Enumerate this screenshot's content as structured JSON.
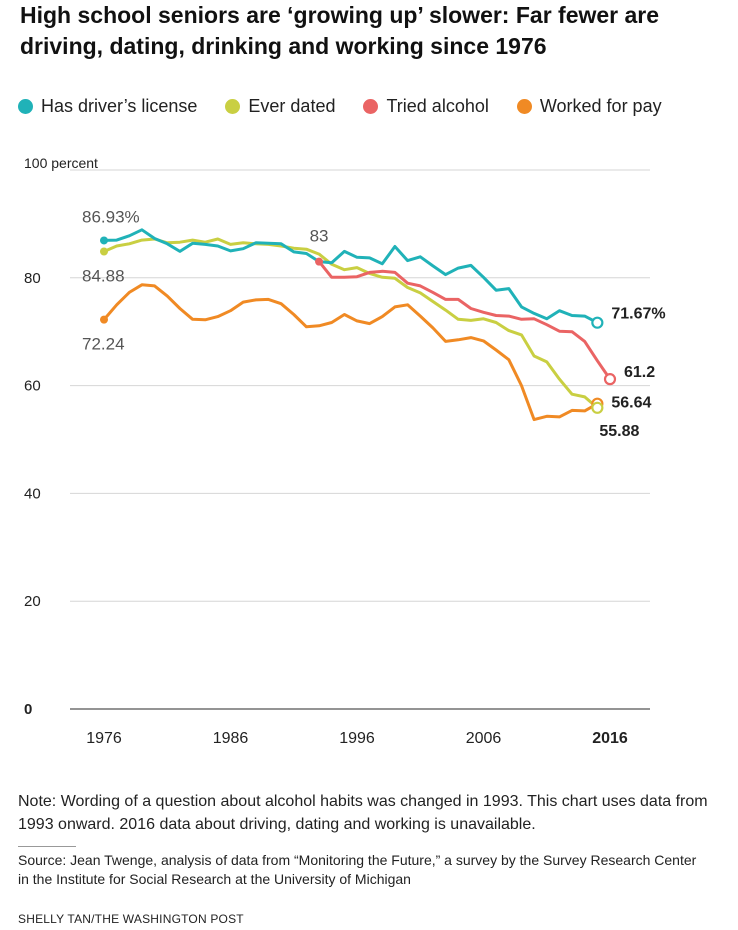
{
  "header": {
    "title": "High school seniors are ‘growing up’ slower: Far fewer are driving, dating, drinking and working since 1976"
  },
  "chart_data": {
    "type": "line",
    "title": "High school seniors are ‘growing up’ slower: Far fewer are driving, dating, drinking and working since 1976",
    "xlabel": "",
    "ylabel": "",
    "xlim": [
      1976,
      2016
    ],
    "ylim": [
      0,
      100
    ],
    "x_ticks": [
      1976,
      1986,
      1996,
      2006,
      2016
    ],
    "y_ticks": [
      0,
      20,
      40,
      60,
      80,
      100
    ],
    "y_tick_labels": [
      "0",
      "20",
      "40",
      "60",
      "80",
      "100 percent"
    ],
    "grid": true,
    "legend_position": "top",
    "series": [
      {
        "name": "Has driver’s license",
        "color": "#20b2b8",
        "x": [
          1976,
          1977,
          1978,
          1979,
          1980,
          1981,
          1982,
          1983,
          1984,
          1985,
          1986,
          1987,
          1988,
          1989,
          1990,
          1991,
          1992,
          1993,
          1994,
          1995,
          1996,
          1997,
          1998,
          1999,
          2000,
          2001,
          2002,
          2003,
          2004,
          2005,
          2006,
          2007,
          2008,
          2009,
          2010,
          2011,
          2012,
          2013,
          2014,
          2015
        ],
        "values": [
          86.93,
          87.0,
          87.8,
          88.9,
          87.3,
          86.3,
          84.9,
          86.4,
          86.2,
          85.9,
          85.0,
          85.4,
          86.5,
          86.4,
          86.3,
          84.8,
          84.5,
          83.0,
          82.8,
          84.9,
          83.8,
          83.7,
          82.6,
          85.8,
          83.2,
          83.9,
          82.2,
          80.6,
          81.8,
          82.3,
          80.1,
          77.7,
          78.0,
          74.6,
          73.4,
          72.4,
          73.9,
          73.0,
          72.9,
          71.67
        ]
      },
      {
        "name": "Ever dated",
        "color": "#c9cf42",
        "x": [
          1976,
          1977,
          1978,
          1979,
          1980,
          1981,
          1982,
          1983,
          1984,
          1985,
          1986,
          1987,
          1988,
          1989,
          1990,
          1991,
          1992,
          1993,
          1994,
          1995,
          1996,
          1997,
          1998,
          1999,
          2000,
          2001,
          2002,
          2003,
          2004,
          2005,
          2006,
          2007,
          2008,
          2009,
          2010,
          2011,
          2012,
          2013,
          2014,
          2015
        ],
        "values": [
          84.88,
          85.9,
          86.3,
          87.0,
          87.2,
          86.5,
          86.6,
          87.0,
          86.6,
          87.2,
          86.2,
          86.5,
          86.3,
          86.2,
          85.9,
          85.5,
          85.3,
          84.4,
          82.5,
          81.5,
          81.9,
          80.8,
          80.1,
          79.9,
          78.2,
          77.2,
          75.6,
          74.0,
          72.3,
          72.1,
          72.4,
          71.7,
          70.2,
          69.4,
          65.5,
          64.4,
          61.2,
          58.4,
          57.9,
          55.88
        ]
      },
      {
        "name": "Tried alcohol",
        "color": "#ea6464",
        "x": [
          1993,
          1994,
          1995,
          1996,
          1997,
          1998,
          1999,
          2000,
          2001,
          2002,
          2003,
          2004,
          2005,
          2006,
          2007,
          2008,
          2009,
          2010,
          2011,
          2012,
          2013,
          2014,
          2015,
          2016
        ],
        "values": [
          83.0,
          80.1,
          80.1,
          80.2,
          81.0,
          81.2,
          81.0,
          79.0,
          78.5,
          77.3,
          76.0,
          76.0,
          74.3,
          73.6,
          73.0,
          72.9,
          72.3,
          72.4,
          71.3,
          70.1,
          70.0,
          68.2,
          64.6,
          61.2
        ]
      },
      {
        "name": "Worked for pay",
        "color": "#f08a24",
        "x": [
          1976,
          1977,
          1978,
          1979,
          1980,
          1981,
          1982,
          1983,
          1984,
          1985,
          1986,
          1987,
          1988,
          1989,
          1990,
          1991,
          1992,
          1993,
          1994,
          1995,
          1996,
          1997,
          1998,
          1999,
          2000,
          2001,
          2002,
          2003,
          2004,
          2005,
          2006,
          2007,
          2008,
          2009,
          2010,
          2011,
          2012,
          2013,
          2014,
          2015
        ],
        "values": [
          72.24,
          75.0,
          77.3,
          78.7,
          78.5,
          76.6,
          74.3,
          72.3,
          72.2,
          72.8,
          73.9,
          75.5,
          75.9,
          76.0,
          75.2,
          73.2,
          70.9,
          71.1,
          71.7,
          73.2,
          72.0,
          71.5,
          72.8,
          74.6,
          75.0,
          72.9,
          70.7,
          68.2,
          68.5,
          68.9,
          68.3,
          66.6,
          64.8,
          60.0,
          53.7,
          54.3,
          54.2,
          55.4,
          55.3,
          56.64
        ]
      }
    ],
    "annotations": [
      {
        "label": "86.93%",
        "series": "Has driver’s license",
        "x": 1976,
        "value": 86.93
      },
      {
        "label": "84.88",
        "series": "Ever dated",
        "x": 1976,
        "value": 84.88
      },
      {
        "label": "72.24",
        "series": "Worked for pay",
        "x": 1976,
        "value": 72.24
      },
      {
        "label": "83",
        "series": "Tried alcohol",
        "x": 1993,
        "value": 83.0
      },
      {
        "label": "71.67%",
        "series": "Has driver’s license",
        "x": 2015,
        "value": 71.67
      },
      {
        "label": "61.2",
        "series": "Tried alcohol",
        "x": 2016,
        "value": 61.2
      },
      {
        "label": "56.64",
        "series": "Worked for pay",
        "x": 2015,
        "value": 56.64
      },
      {
        "label": "55.88",
        "series": "Ever dated",
        "x": 2015,
        "value": 55.88
      }
    ]
  },
  "footer": {
    "note": "Note: Wording of a question about alcohol habits was changed in 1993. This chart uses data from 1993 onward. 2016 data about driving, dating and working is unavailable.",
    "source": "Source: Jean Twenge, analysis of data from “Monitoring the Future,” a survey by the Survey Research Center in the Institute for Social Research at the University of Michigan",
    "credit": "SHELLY TAN/THE WASHINGTON POST"
  }
}
